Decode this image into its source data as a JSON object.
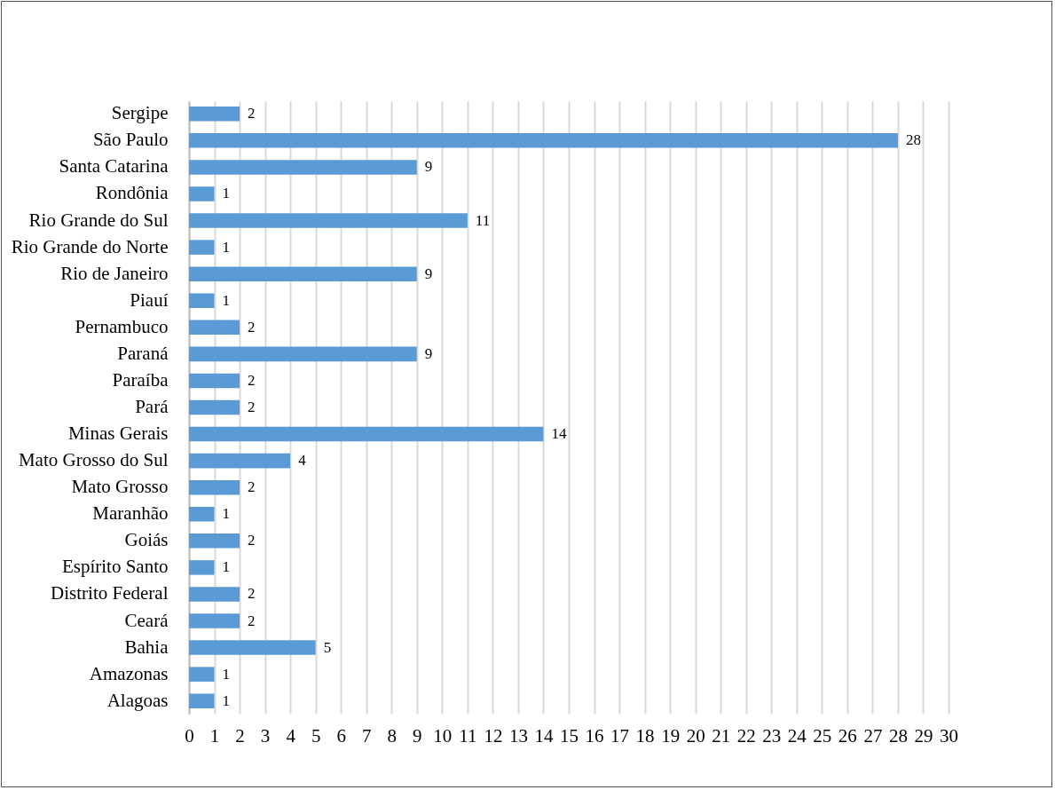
{
  "chart_data": {
    "type": "bar",
    "orientation": "horizontal",
    "categories": [
      "Sergipe",
      "São Paulo",
      "Santa Catarina",
      "Rondônia",
      "Rio Grande do Sul",
      "Rio Grande do Norte",
      "Rio de Janeiro",
      "Piauí",
      "Pernambuco",
      "Paraná",
      "Paraíba",
      "Pará",
      "Minas Gerais",
      "Mato Grosso do Sul",
      "Mato Grosso",
      "Maranhão",
      "Goiás",
      "Espírito Santo",
      "Distrito Federal",
      "Ceará",
      "Bahia",
      "Amazonas",
      "Alagoas"
    ],
    "values": [
      2,
      28,
      9,
      1,
      11,
      1,
      9,
      1,
      2,
      9,
      2,
      2,
      14,
      4,
      2,
      1,
      2,
      1,
      2,
      2,
      5,
      1,
      1
    ],
    "color": "#5b9bd5",
    "xlim": [
      0,
      30
    ],
    "xticks": [
      0,
      1,
      2,
      3,
      4,
      5,
      6,
      7,
      8,
      9,
      10,
      11,
      12,
      13,
      14,
      15,
      16,
      17,
      18,
      19,
      20,
      21,
      22,
      23,
      24,
      25,
      26,
      27,
      28,
      29,
      30
    ],
    "grid": "x",
    "data_labels": true
  }
}
